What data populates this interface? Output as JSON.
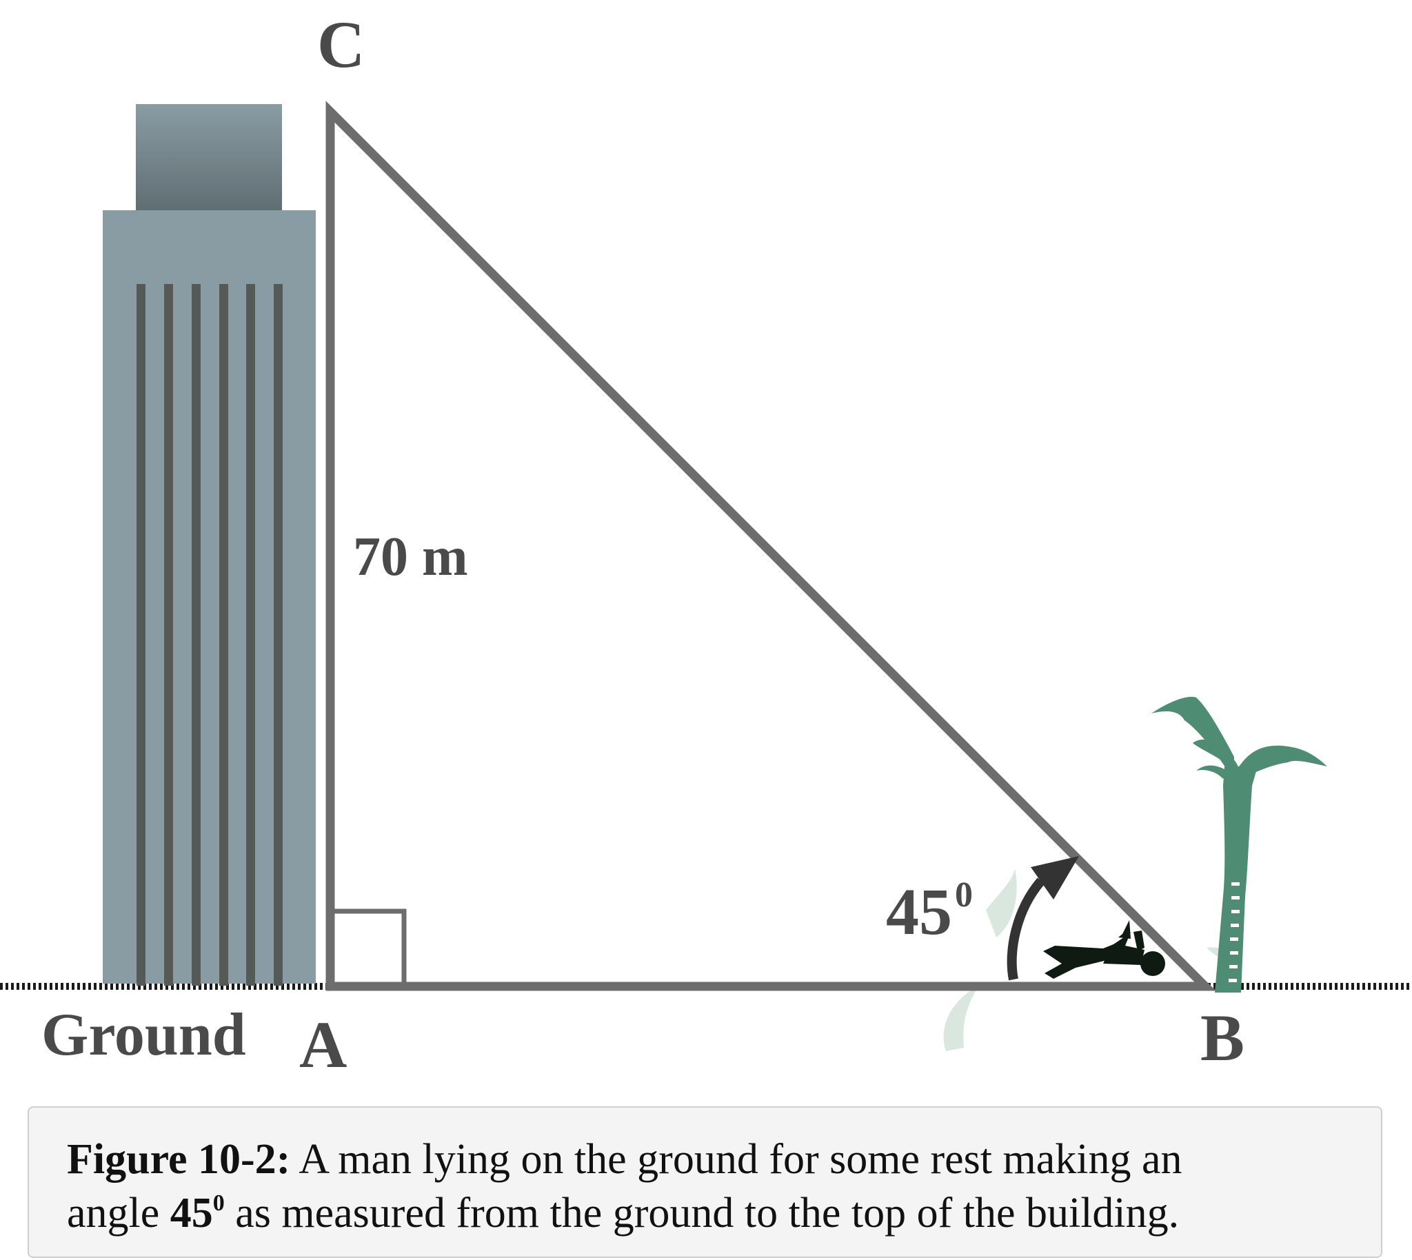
{
  "diagram": {
    "vertex_labels": {
      "a": "A",
      "b": "B",
      "c": "C"
    },
    "ground_label": "Ground",
    "height_label": "70 m",
    "angle_value": "45",
    "angle_unit": "0"
  },
  "caption": {
    "figure_label": "Figure 10-2:",
    "line1": "A man lying on the ground for some rest making an",
    "line2_start": "angle",
    "angle_value": "45",
    "angle_unit": "0",
    "line2_end": "as measured from the ground to the top of the building."
  },
  "colors": {
    "building": "#8a9ca3",
    "building_stripes": "#555a57",
    "triangle": "#6d6d6d",
    "palm": "#4e8c73",
    "man": "#0e1a12",
    "text": "#4a4a4a"
  }
}
